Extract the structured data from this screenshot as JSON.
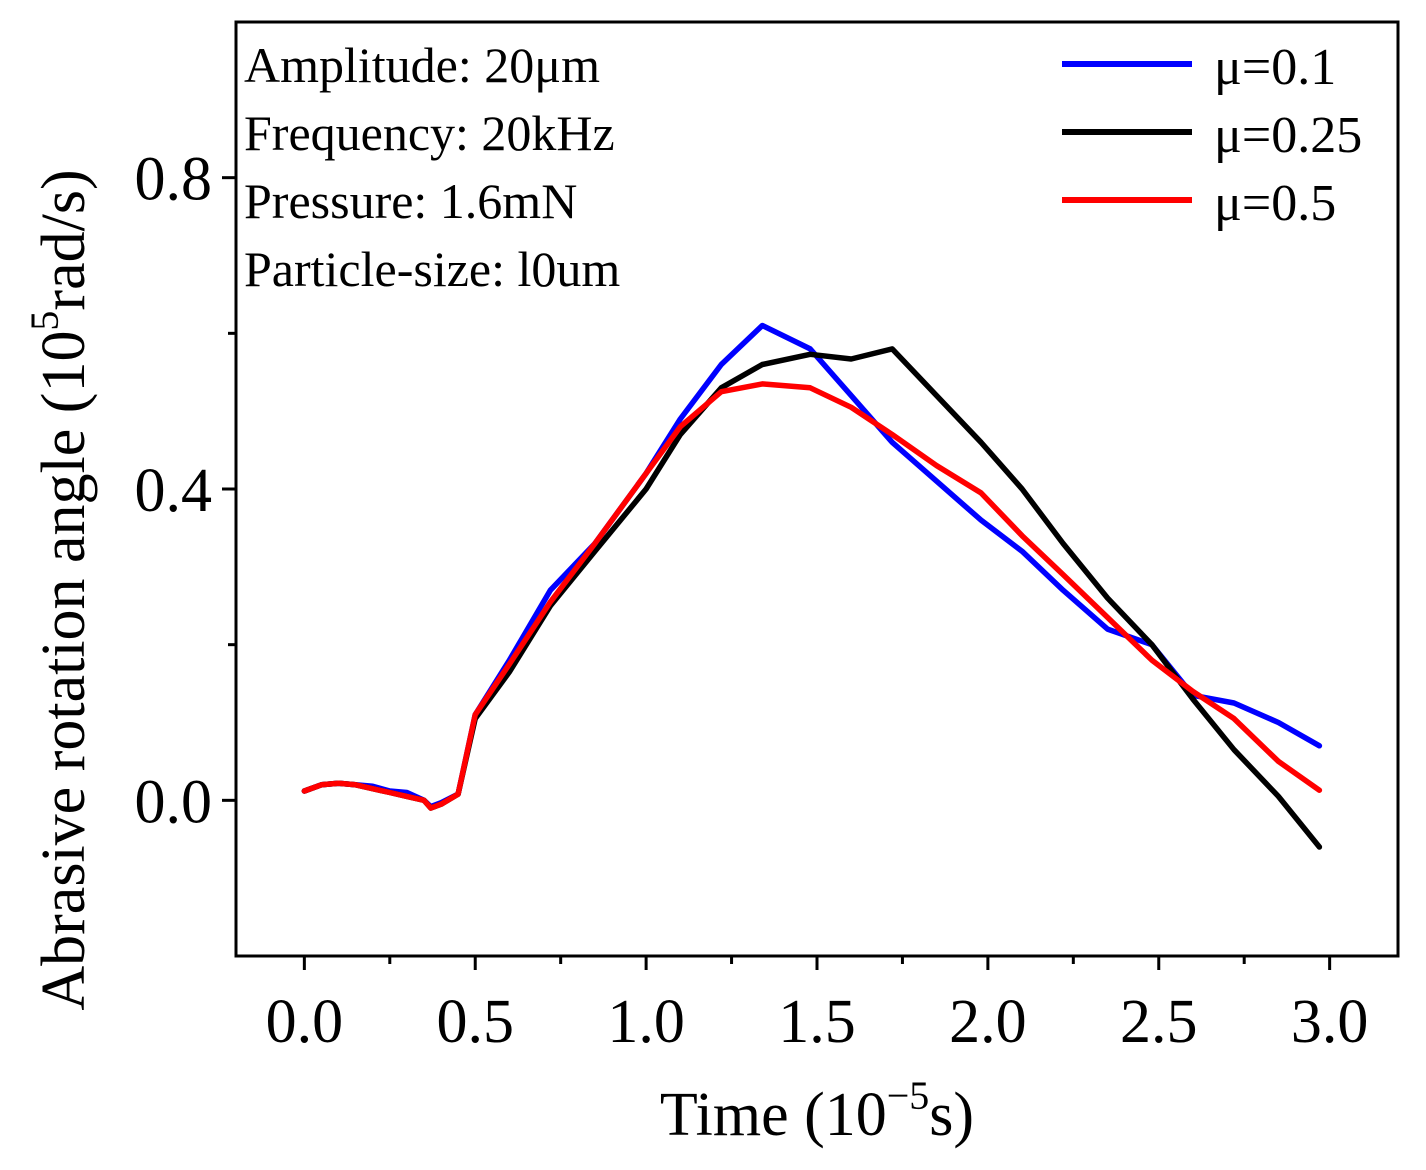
{
  "chart_data": {
    "type": "line",
    "title": "",
    "xlabel": {
      "base": "Time (10",
      "exp": "−5",
      "unit": "s)"
    },
    "ylabel": {
      "base": "Abrasive rotation angle (10",
      "exp": "5",
      "unit": "rad/s)"
    },
    "xlim": [
      -0.2,
      3.2
    ],
    "ylim": [
      -0.2,
      1.0
    ],
    "x_ticks": [
      0.0,
      0.5,
      1.0,
      1.5,
      2.0,
      2.5,
      3.0
    ],
    "x_tick_labels": [
      "0.0",
      "0.5",
      "1.0",
      "1.5",
      "2.0",
      "2.5",
      "3.0"
    ],
    "y_ticks": [
      0.0,
      0.4,
      0.8
    ],
    "y_tick_labels": [
      "0.0",
      "0.4",
      "0.8"
    ],
    "x_minor_ticks": [
      0.25,
      0.75,
      1.25,
      1.75,
      2.25,
      2.75
    ],
    "y_minor_ticks": [
      0.2,
      0.6
    ],
    "annotations": [
      "Amplitude: 20μm",
      "Frequency: 20kHz",
      "Pressure: 1.6mN",
      "Particle-size: l0um"
    ],
    "legend_position": "top-right",
    "series": [
      {
        "name": "μ=0.1",
        "color": "#0000ff",
        "x": [
          0,
          0.05,
          0.1,
          0.15,
          0.2,
          0.25,
          0.3,
          0.35,
          0.37,
          0.4,
          0.45,
          0.5,
          0.6,
          0.72,
          0.85,
          1.0,
          1.1,
          1.22,
          1.34,
          1.48,
          1.6,
          1.72,
          1.85,
          1.98,
          2.1,
          2.22,
          2.35,
          2.48,
          2.6,
          2.72,
          2.85,
          2.97
        ],
        "y": [
          0.012,
          0.02,
          0.022,
          0.02,
          0.018,
          0.012,
          0.01,
          0.0,
          -0.008,
          -0.003,
          0.008,
          0.11,
          0.18,
          0.27,
          0.33,
          0.42,
          0.49,
          0.56,
          0.61,
          0.58,
          0.52,
          0.46,
          0.41,
          0.36,
          0.32,
          0.27,
          0.22,
          0.2,
          0.135,
          0.125,
          0.1,
          0.07
        ]
      },
      {
        "name": "μ=0.25",
        "color": "#000000",
        "x": [
          0,
          0.05,
          0.1,
          0.15,
          0.2,
          0.25,
          0.3,
          0.35,
          0.37,
          0.4,
          0.45,
          0.5,
          0.6,
          0.72,
          0.85,
          1.0,
          1.1,
          1.22,
          1.34,
          1.48,
          1.6,
          1.72,
          1.85,
          1.98,
          2.1,
          2.22,
          2.35,
          2.48,
          2.6,
          2.72,
          2.85,
          2.97
        ],
        "y": [
          0.012,
          0.02,
          0.022,
          0.02,
          0.015,
          0.01,
          0.005,
          0.0,
          -0.01,
          -0.005,
          0.008,
          0.105,
          0.165,
          0.25,
          0.32,
          0.4,
          0.47,
          0.53,
          0.56,
          0.573,
          0.567,
          0.58,
          0.52,
          0.46,
          0.4,
          0.33,
          0.26,
          0.2,
          0.13,
          0.065,
          0.005,
          -0.06
        ]
      },
      {
        "name": "μ=0.5",
        "color": "#ff0000",
        "x": [
          0,
          0.05,
          0.1,
          0.15,
          0.2,
          0.25,
          0.3,
          0.35,
          0.37,
          0.4,
          0.45,
          0.5,
          0.6,
          0.72,
          0.85,
          1.0,
          1.1,
          1.22,
          1.34,
          1.48,
          1.6,
          1.72,
          1.85,
          1.98,
          2.1,
          2.22,
          2.35,
          2.48,
          2.6,
          2.72,
          2.85,
          2.97
        ],
        "y": [
          0.012,
          0.02,
          0.022,
          0.02,
          0.015,
          0.01,
          0.005,
          0.0,
          -0.01,
          -0.005,
          0.008,
          0.11,
          0.175,
          0.255,
          0.33,
          0.42,
          0.48,
          0.525,
          0.535,
          0.53,
          0.505,
          0.47,
          0.43,
          0.395,
          0.34,
          0.29,
          0.235,
          0.18,
          0.14,
          0.105,
          0.05,
          0.013
        ]
      }
    ]
  }
}
